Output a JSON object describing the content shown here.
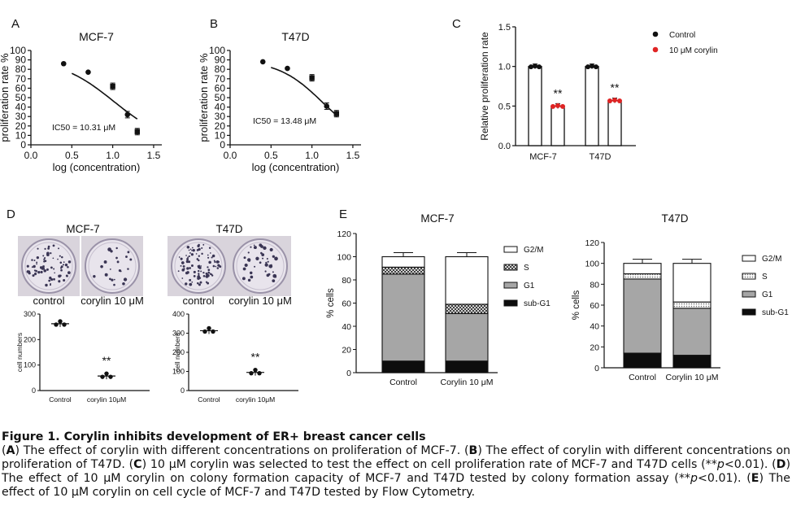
{
  "panels": {
    "A": {
      "letter": "A",
      "title": "MCF-7",
      "ylabel": "proliferation rate %",
      "xlabel": "log (concentration)",
      "yticks": [
        "0",
        "10",
        "20",
        "30",
        "40",
        "50",
        "60",
        "70",
        "80",
        "90",
        "100"
      ],
      "xticks": [
        "0.0",
        "0.5",
        "1.0",
        "1.5"
      ],
      "annotation": "IC50 = 10.31 μM"
    },
    "B": {
      "letter": "B",
      "title": "T47D",
      "ylabel": "proliferation rate %",
      "xlabel": "log (concentration)",
      "yticks": [
        "0",
        "10",
        "20",
        "30",
        "40",
        "50",
        "60",
        "70",
        "80",
        "90",
        "100"
      ],
      "xticks": [
        "0.0",
        "0.5",
        "1.0",
        "1.5"
      ],
      "annotation": "IC50 = 13.48 μM"
    },
    "C": {
      "letter": "C",
      "ylabel": "Relative proliferation rate",
      "yticks": [
        "0.0",
        "0.5",
        "1.0",
        "1.5"
      ],
      "categories": [
        "MCF-7",
        "T47D"
      ],
      "legend": [
        "Control",
        "10 μM corylin"
      ],
      "sig": "**"
    },
    "D": {
      "letter": "D",
      "mcf7_title": "MCF-7",
      "t47d_title": "T47D",
      "img_labels": [
        "control",
        "corylin 10 μM",
        "control",
        "corylin 10 μM"
      ],
      "ylabel": "cell numbers",
      "mcf7_yticks": [
        "0",
        "100",
        "200",
        "300"
      ],
      "t47d_yticks": [
        "0",
        "100",
        "200",
        "300",
        "400"
      ],
      "xcats": [
        "Control",
        "corylin 10μM"
      ],
      "sig": "**"
    },
    "E": {
      "letter": "E",
      "mcf7_title": "MCF-7",
      "t47d_title": "T47D",
      "ylabel": "% cells",
      "yticks": [
        "0",
        "20",
        "40",
        "60",
        "80",
        "100",
        "120"
      ],
      "categories": [
        "Control",
        "Corylin 10 μM"
      ],
      "legend": [
        "G2/M",
        "S",
        "G1",
        "sub-G1"
      ]
    }
  },
  "chart_data": [
    {
      "type": "scatter",
      "panel": "A",
      "title": "MCF-7",
      "xlabel": "log (concentration)",
      "ylabel": "proliferation rate %",
      "xlim": [
        0.0,
        1.6
      ],
      "ylim": [
        0,
        100
      ],
      "x": [
        0.4,
        0.7,
        1.0,
        1.18,
        1.3
      ],
      "y": [
        86,
        77,
        62,
        32,
        14
      ],
      "fit_curve": {
        "top": 92,
        "bottom": 0,
        "log_ic50": 1.013,
        "hill": 1.3
      }
    },
    {
      "type": "scatter",
      "panel": "B",
      "title": "T47D",
      "xlabel": "log (concentration)",
      "ylabel": "proliferation rate %",
      "xlim": [
        0.0,
        1.6
      ],
      "ylim": [
        0,
        100
      ],
      "x": [
        0.4,
        0.7,
        1.0,
        1.18,
        1.3
      ],
      "y": [
        88,
        81,
        71,
        41,
        33
      ],
      "fit_curve": {
        "top": 90,
        "bottom": 0,
        "log_ic50": 1.13,
        "hill": 1.6
      }
    },
    {
      "type": "bar",
      "panel": "C",
      "ylabel": "Relative proliferation rate",
      "ylim": [
        0,
        1.5
      ],
      "categories": [
        "MCF-7",
        "T47D"
      ],
      "series": [
        {
          "name": "Control",
          "values": [
            1.0,
            1.0
          ],
          "color": "#111111"
        },
        {
          "name": "10 μM corylin",
          "values": [
            0.5,
            0.57
          ],
          "color": "#e02424"
        }
      ]
    },
    {
      "type": "scatter",
      "panel": "D",
      "title": "MCF-7",
      "ylabel": "cell numbers",
      "ylim": [
        0,
        300
      ],
      "categories": [
        "Control",
        "corylin 10μM"
      ],
      "values": [
        262,
        57
      ]
    },
    {
      "type": "scatter",
      "panel": "D",
      "title": "T47D",
      "ylabel": "cell numbers",
      "ylim": [
        0,
        400
      ],
      "categories": [
        "Control",
        "corylin 10μM"
      ],
      "values": [
        313,
        95
      ]
    },
    {
      "type": "bar",
      "panel": "E",
      "title": "MCF-7",
      "ylabel": "% cells",
      "stacked": true,
      "ylim": [
        0,
        120
      ],
      "categories": [
        "Control",
        "Corylin 10 μM"
      ],
      "series": [
        {
          "name": "sub-G1",
          "values": [
            10,
            10
          ]
        },
        {
          "name": "G1",
          "values": [
            75,
            41
          ]
        },
        {
          "name": "S",
          "values": [
            6,
            8
          ]
        },
        {
          "name": "G2/M",
          "values": [
            9,
            41
          ]
        }
      ]
    },
    {
      "type": "bar",
      "panel": "E",
      "title": "T47D",
      "ylabel": "% cells",
      "stacked": true,
      "ylim": [
        0,
        120
      ],
      "categories": [
        "Control",
        "Corylin 10 μM"
      ],
      "series": [
        {
          "name": "sub-G1",
          "values": [
            14,
            12
          ]
        },
        {
          "name": "G1",
          "values": [
            71,
            45
          ]
        },
        {
          "name": "S",
          "values": [
            5,
            6
          ]
        },
        {
          "name": "G2/M",
          "values": [
            10,
            37
          ]
        }
      ]
    }
  ],
  "caption": {
    "title": "Figure 1. Corylin inhibits development of ER+ breast cancer cells",
    "p1": "(",
    "A": "A",
    "p2": ") The effect of corylin with different concentrations on proliferation of MCF-7. (",
    "B": "B",
    "p3": ") The effect of corylin with different concentrations on proliferation of T47D. (",
    "C": "C",
    "p4": ") 10 μM corylin was selected to test the effect on cell proliferation rate of MCF-7 and T47D cells (**",
    "pa": "p",
    "p5": "<0.01). (",
    "D": "D",
    "p6": ") The effect of 10 μM corylin on colony formation capacity of MCF-7 and T47D tested by colony formation assay (**",
    "pb": "p",
    "p7": "<0.01). (",
    "E": "E",
    "p8": ") The effect of 10 μM corylin on cell cycle of MCF-7 and T47D tested by Flow Cytometry."
  }
}
